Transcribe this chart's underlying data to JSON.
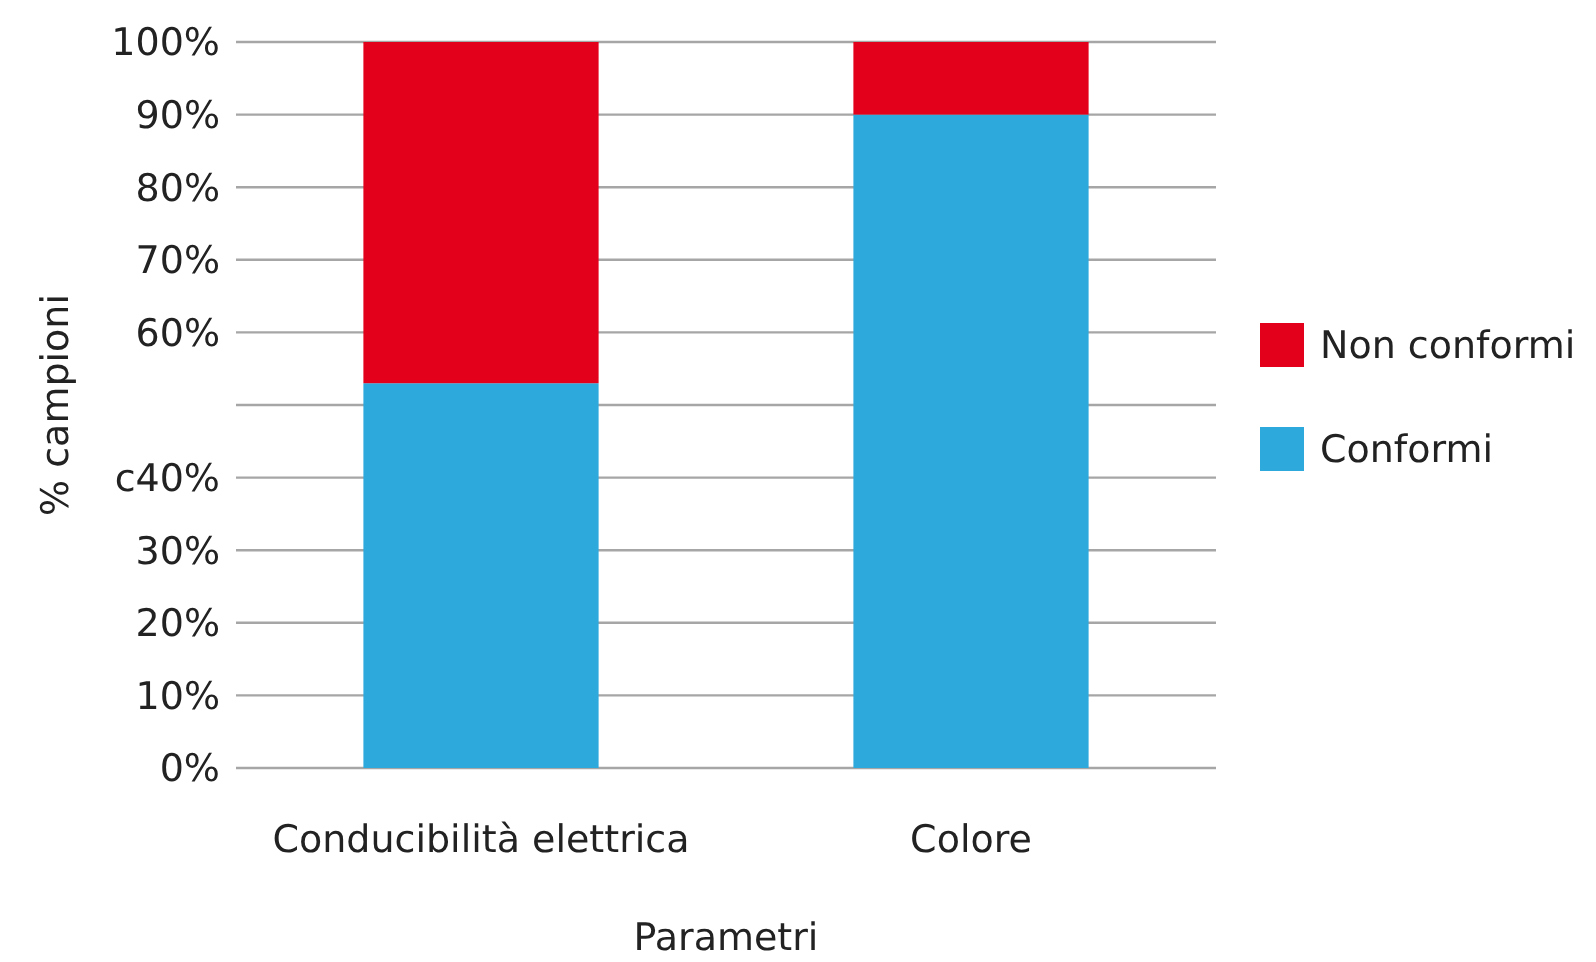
{
  "chart_data": {
    "type": "bar",
    "stacked": true,
    "xlabel": "Parametri",
    "ylabel": "% campioni",
    "categories": [
      "Conducibilità elettrica",
      "Colore"
    ],
    "series": [
      {
        "name": "Conformi",
        "color": "#2ea9dc",
        "values": [
          53,
          90
        ]
      },
      {
        "name": "Non conformi",
        "color": "#e2001a",
        "values": [
          47,
          10
        ]
      }
    ],
    "ylim": [
      0,
      100
    ],
    "yticks": [
      {
        "value": 0,
        "label": "0%"
      },
      {
        "value": 10,
        "label": "10%"
      },
      {
        "value": 20,
        "label": "20%"
      },
      {
        "value": 30,
        "label": "30%"
      },
      {
        "value": 40,
        "label": "c40%"
      },
      {
        "value": 50,
        "label": null
      },
      {
        "value": 60,
        "label": "60%"
      },
      {
        "value": 70,
        "label": "70%"
      },
      {
        "value": 80,
        "label": "80%"
      },
      {
        "value": 90,
        "label": "90%"
      },
      {
        "value": 100,
        "label": "100%"
      }
    ],
    "grid": "y",
    "legend": "right"
  }
}
